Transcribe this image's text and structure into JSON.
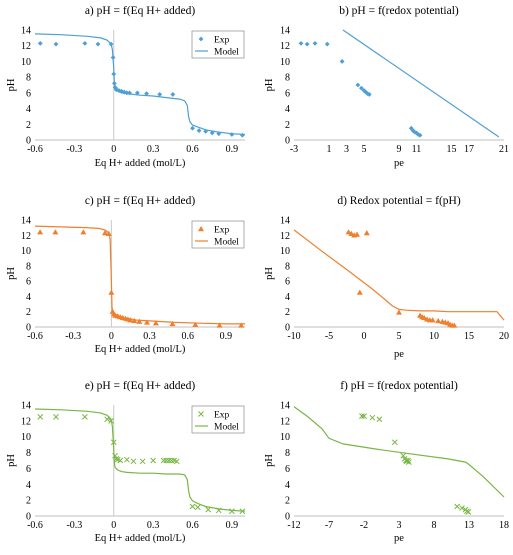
{
  "panels": [
    {
      "title": "a) pH = f(Eq H+ added)",
      "type": "scatter+line",
      "xlabel": "Eq H+ added (mol/L)",
      "ylabel": "pH",
      "xlim": [
        -0.6,
        1.0
      ],
      "ylim": [
        0,
        14
      ],
      "xticks": [
        -0.6,
        -0.3,
        0,
        0.3,
        0.6,
        0.9
      ],
      "yticks": [
        0,
        2,
        4,
        6,
        8,
        10,
        12,
        14
      ],
      "vline": 0,
      "legend": {
        "position": "top-right",
        "entries": [
          {
            "label": "Exp",
            "kind": "marker"
          },
          {
            "label": "Model",
            "kind": "line"
          }
        ]
      },
      "marker": "diamond",
      "color": "#4e9fd6",
      "series": [
        {
          "name": "Exp",
          "kind": "scatter",
          "x": [
            -0.56,
            -0.44,
            -0.22,
            -0.12,
            -0.02,
            -0.005,
            0.0,
            0.005,
            0.01,
            0.015,
            0.02,
            0.04,
            0.06,
            0.08,
            0.1,
            0.12,
            0.18,
            0.25,
            0.35,
            0.45,
            0.6,
            0.65,
            0.7,
            0.75,
            0.8,
            0.9,
            0.98
          ],
          "y": [
            12.3,
            12.2,
            12.3,
            12.2,
            12.2,
            10.5,
            8.4,
            7.2,
            6.7,
            6.6,
            6.4,
            6.3,
            6.2,
            6.1,
            6.0,
            6.0,
            6.0,
            5.9,
            5.8,
            5.8,
            1.5,
            1.2,
            1.1,
            0.9,
            0.8,
            0.7,
            0.6
          ]
        },
        {
          "name": "Model",
          "kind": "line",
          "x": [
            -0.6,
            -0.4,
            -0.2,
            -0.1,
            -0.05,
            -0.02,
            -0.01,
            0.0,
            0.005,
            0.01,
            0.03,
            0.06,
            0.1,
            0.2,
            0.3,
            0.4,
            0.5,
            0.54,
            0.56,
            0.57,
            0.58,
            0.6,
            0.65,
            0.7,
            0.8,
            0.9,
            1.0
          ],
          "y": [
            13.5,
            13.4,
            13.2,
            13.0,
            12.7,
            12.2,
            11.5,
            9.2,
            7.2,
            6.6,
            6.2,
            6.0,
            5.9,
            5.7,
            5.6,
            5.4,
            5.2,
            5.0,
            4.4,
            3.0,
            2.3,
            1.9,
            1.6,
            1.3,
            1.0,
            0.8,
            0.7
          ]
        }
      ]
    },
    {
      "title": "b) pH = f(redox potential)",
      "type": "scatter+line",
      "xlabel": "pe",
      "ylabel": "pH",
      "xlim": [
        -3,
        21
      ],
      "ylim": [
        0,
        14
      ],
      "xticks": [
        -3,
        1,
        3,
        5,
        9,
        11,
        15,
        17,
        21
      ],
      "xticklabels": [
        "-3",
        "1",
        "3",
        "5",
        "9",
        "11",
        "15",
        "17",
        "21"
      ],
      "yticks": [
        0,
        2,
        4,
        6,
        8,
        10,
        12,
        14
      ],
      "color": "#4e9fd6",
      "marker": "diamond",
      "series": [
        {
          "name": "Exp",
          "kind": "scatter",
          "x": [
            -2.2,
            -1.5,
            -0.6,
            0.8,
            2.5,
            4.3,
            4.7,
            5.0,
            5.2,
            5.4,
            5.6,
            10.4,
            10.6,
            10.8,
            11.0,
            11.2,
            11.4
          ],
          "y": [
            12.3,
            12.2,
            12.3,
            12.2,
            10.0,
            7.0,
            6.6,
            6.3,
            6.1,
            5.9,
            5.8,
            1.5,
            1.2,
            1.0,
            0.9,
            0.7,
            0.6
          ]
        },
        {
          "name": "Model",
          "kind": "line",
          "x": [
            2.6,
            20.4
          ],
          "y": [
            14.0,
            0.4
          ]
        }
      ]
    },
    {
      "title": "c) pH = f(Eq H+ added)",
      "type": "scatter+line",
      "xlabel": "Eq H+ added (mol/L)",
      "ylabel": "pH",
      "xlim": [
        -0.6,
        1.05
      ],
      "ylim": [
        0,
        14
      ],
      "xticks": [
        -0.6,
        -0.3,
        0,
        0.3,
        0.6,
        0.9
      ],
      "yticks": [
        0,
        2,
        4,
        6,
        8,
        10,
        12,
        14
      ],
      "vline": 0,
      "legend": {
        "position": "top-right",
        "entries": [
          {
            "label": "Exp",
            "kind": "marker"
          },
          {
            "label": "Model",
            "kind": "line"
          }
        ]
      },
      "marker": "triangle",
      "color": "#f07f2d",
      "series": [
        {
          "name": "Exp",
          "kind": "scatter",
          "x": [
            -0.56,
            -0.44,
            -0.22,
            -0.05,
            -0.02,
            0.0,
            0.01,
            0.02,
            0.03,
            0.05,
            0.07,
            0.09,
            0.11,
            0.13,
            0.15,
            0.18,
            0.22,
            0.28,
            0.35,
            0.48,
            0.66,
            0.85,
            1.02
          ],
          "y": [
            12.4,
            12.4,
            12.4,
            12.3,
            12.2,
            4.5,
            2.0,
            1.7,
            1.5,
            1.4,
            1.3,
            1.2,
            1.1,
            1.0,
            0.9,
            0.8,
            0.7,
            0.6,
            0.5,
            0.4,
            0.3,
            0.2,
            0.2
          ]
        },
        {
          "name": "Model",
          "kind": "line",
          "x": [
            -0.6,
            -0.4,
            -0.2,
            -0.1,
            -0.05,
            -0.02,
            -0.01,
            0.0,
            0.005,
            0.01,
            0.02,
            0.05,
            0.1,
            0.2,
            0.3,
            0.5,
            0.7,
            0.9,
            1.05
          ],
          "y": [
            13.2,
            13.1,
            13.0,
            12.9,
            12.7,
            12.3,
            11.5,
            6.0,
            2.6,
            2.1,
            1.8,
            1.5,
            1.2,
            0.9,
            0.8,
            0.6,
            0.5,
            0.4,
            0.4
          ]
        }
      ]
    },
    {
      "title": "d) Redox potential = f(pH)",
      "type": "scatter+line",
      "xlabel": "pe",
      "ylabel": "pH",
      "xlim": [
        -10,
        20
      ],
      "ylim": [
        0,
        14
      ],
      "xticks": [
        -10,
        -5,
        0,
        5,
        10,
        15,
        20
      ],
      "yticks": [
        0,
        2,
        4,
        6,
        8,
        10,
        12,
        14
      ],
      "marker": "triangle",
      "color": "#f07f2d",
      "series": [
        {
          "name": "Exp",
          "kind": "scatter",
          "x": [
            -2.2,
            -1.8,
            -1.4,
            -0.6,
            0.4,
            -1.0,
            5.0,
            8.0,
            8.3,
            8.6,
            9.0,
            9.4,
            9.8,
            10.6,
            11.2,
            11.6,
            12.0,
            12.3,
            12.6,
            12.9
          ],
          "y": [
            12.4,
            12.2,
            12.0,
            4.5,
            12.3,
            12.1,
            1.9,
            1.5,
            1.3,
            1.2,
            1.0,
            0.9,
            0.9,
            0.8,
            0.7,
            0.6,
            0.5,
            0.3,
            0.2,
            0.2
          ]
        },
        {
          "name": "Model",
          "kind": "line",
          "x": [
            -10,
            -6,
            -2,
            1,
            3,
            4,
            5,
            6,
            8,
            10,
            12,
            14,
            16,
            18,
            19,
            20
          ],
          "y": [
            12.7,
            9.9,
            7.2,
            5.1,
            3.6,
            2.8,
            2.3,
            2.2,
            2.1,
            2.1,
            2.0,
            2.0,
            2.0,
            2.0,
            2.0,
            0.9
          ]
        }
      ]
    },
    {
      "title": "e) pH = f(Eq H+ added)",
      "type": "scatter+line",
      "xlabel": "Eq H+ added (mol/L)",
      "ylabel": "pH",
      "xlim": [
        -0.6,
        1.0
      ],
      "ylim": [
        0,
        14
      ],
      "xticks": [
        -0.6,
        -0.3,
        0,
        0.3,
        0.6,
        0.9
      ],
      "yticks": [
        0,
        2,
        4,
        6,
        8,
        10,
        12,
        14
      ],
      "vline": 0,
      "legend": {
        "position": "top-right",
        "entries": [
          {
            "label": "Exp",
            "kind": "marker"
          },
          {
            "label": "Model",
            "kind": "line"
          }
        ]
      },
      "marker": "cross",
      "color": "#77b743",
      "series": [
        {
          "name": "Exp",
          "kind": "scatter",
          "x": [
            -0.56,
            -0.44,
            -0.22,
            -0.05,
            -0.02,
            0.0,
            0.01,
            0.02,
            0.03,
            0.05,
            0.1,
            0.15,
            0.22,
            0.3,
            0.38,
            0.4,
            0.42,
            0.44,
            0.46,
            0.48,
            0.6,
            0.64,
            0.72,
            0.8,
            0.9,
            0.98
          ],
          "y": [
            12.5,
            12.5,
            12.5,
            12.2,
            12.0,
            9.3,
            7.6,
            7.2,
            7.1,
            7.0,
            7.1,
            6.9,
            6.9,
            7.0,
            7.0,
            7.0,
            7.0,
            7.0,
            7.0,
            6.9,
            1.2,
            1.1,
            0.8,
            0.7,
            0.6,
            0.6
          ]
        },
        {
          "name": "Model",
          "kind": "line",
          "x": [
            -0.6,
            -0.4,
            -0.2,
            -0.1,
            -0.05,
            -0.02,
            -0.01,
            0.0,
            0.005,
            0.01,
            0.03,
            0.06,
            0.1,
            0.2,
            0.3,
            0.4,
            0.5,
            0.54,
            0.56,
            0.57,
            0.58,
            0.6,
            0.65,
            0.7,
            0.8,
            0.9,
            1.0
          ],
          "y": [
            13.5,
            13.4,
            13.2,
            13.0,
            12.7,
            12.2,
            11.3,
            8.5,
            6.7,
            6.1,
            5.8,
            5.6,
            5.5,
            5.4,
            5.4,
            5.3,
            5.3,
            5.2,
            4.6,
            3.2,
            2.4,
            1.9,
            1.5,
            1.2,
            0.9,
            0.7,
            0.6
          ]
        }
      ]
    },
    {
      "title": "f) pH = f(redox potential)",
      "type": "scatter+line",
      "xlabel": "pe",
      "ylabel": "pH",
      "xlim": [
        -12,
        18
      ],
      "ylim": [
        0,
        14
      ],
      "xticks": [
        -12,
        -7,
        -2,
        3,
        8,
        13,
        18
      ],
      "yticks": [
        0,
        2,
        4,
        6,
        8,
        10,
        12,
        14
      ],
      "marker": "cross",
      "color": "#77b743",
      "series": [
        {
          "name": "Exp",
          "kind": "scatter",
          "x": [
            -2.3,
            -2.0,
            -0.8,
            0.2,
            2.4,
            3.6,
            3.8,
            4.0,
            4.1,
            4.3,
            4.4,
            11.3,
            12.0,
            12.5,
            12.7,
            12.9
          ],
          "y": [
            12.6,
            12.6,
            12.4,
            12.2,
            9.3,
            7.6,
            7.2,
            7.0,
            6.9,
            7.0,
            6.8,
            1.2,
            1.0,
            0.8,
            0.6,
            0.5
          ]
        },
        {
          "name": "Model",
          "kind": "line",
          "x": [
            -12,
            -10,
            -8,
            -7,
            -5,
            0,
            5,
            10,
            12.5,
            13,
            15,
            18
          ],
          "y": [
            13.8,
            12.5,
            11.0,
            9.8,
            9.1,
            8.4,
            7.8,
            7.2,
            6.8,
            6.5,
            5.0,
            2.4
          ]
        }
      ]
    }
  ]
}
